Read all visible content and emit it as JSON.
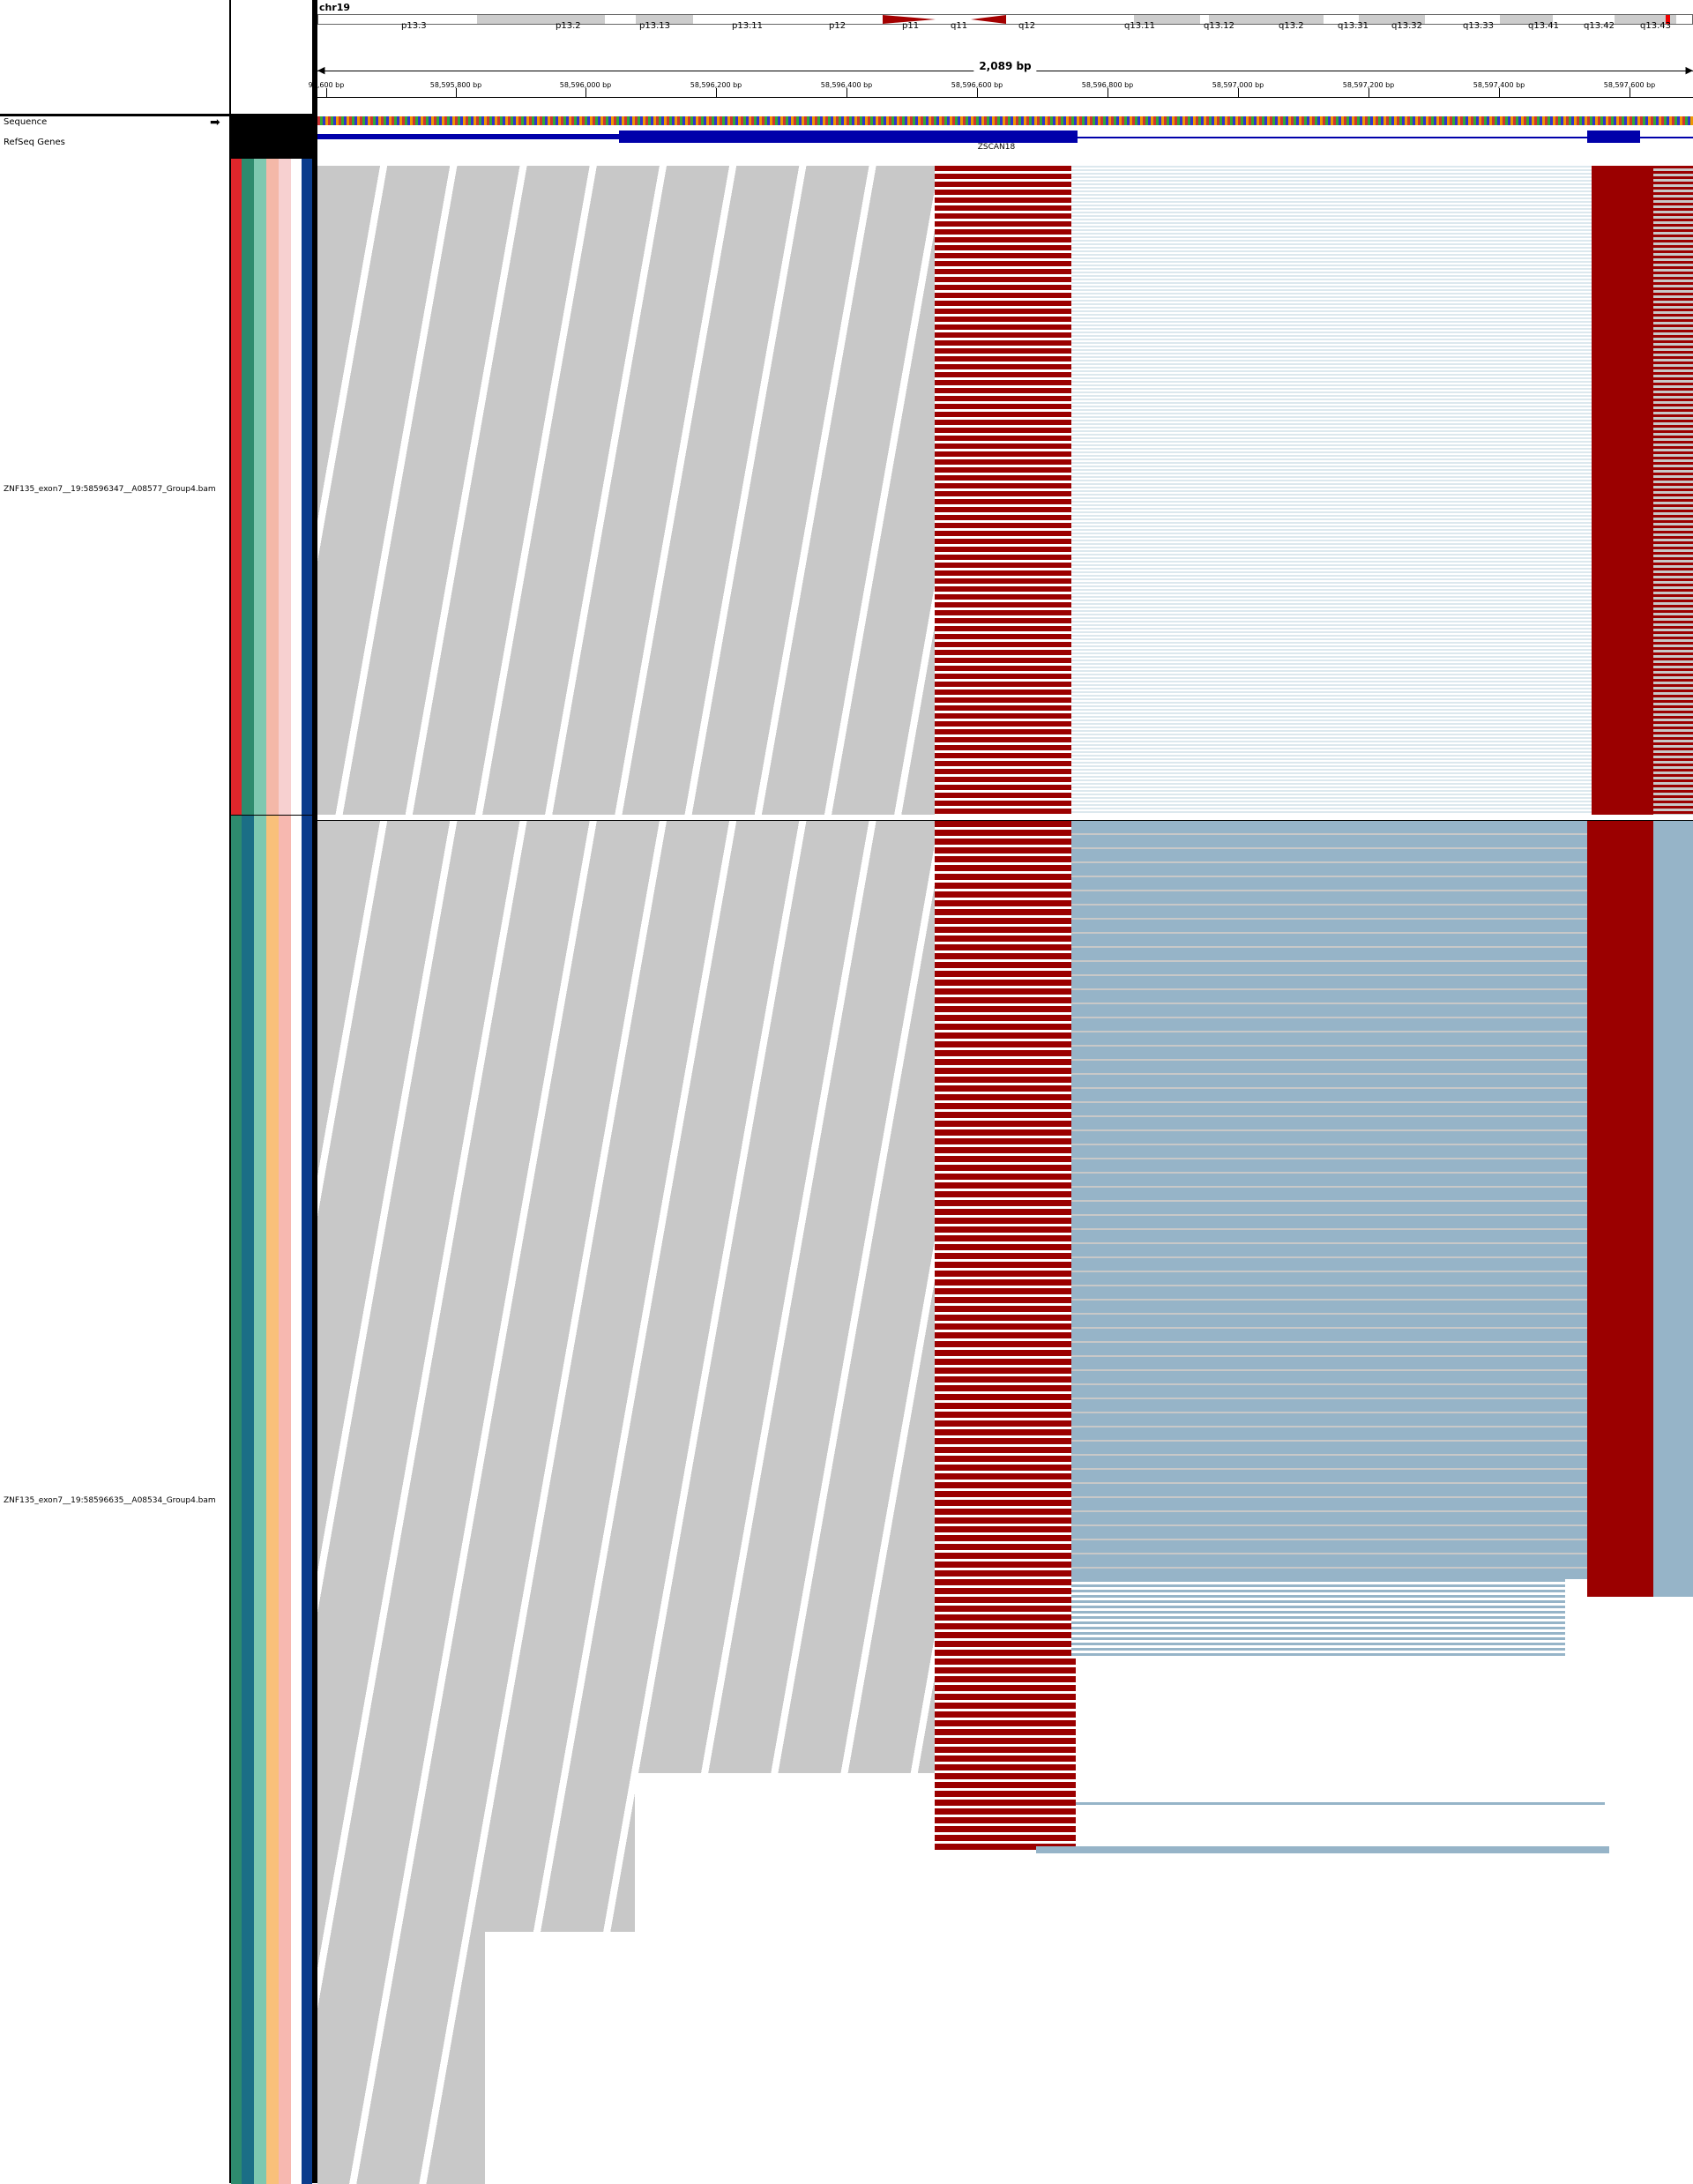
{
  "chromosome": "chr19",
  "span_label": "2,089 bp",
  "cytobands": [
    "p13.3",
    "p13.2",
    "p13.13",
    "p13.11",
    "p12",
    "p11",
    "q11",
    "q12",
    "q13.11",
    "q13.12",
    "q13.2",
    "q13.31",
    "q13.32",
    "q13.33",
    "q13.41",
    "q13.42",
    "q13.43"
  ],
  "ruler_ticks": [
    "95,600 bp",
    "58,595,800 bp",
    "58,596,000 bp",
    "58,596,200 bp",
    "58,596,400 bp",
    "58,596,600 bp",
    "58,596,800 bp",
    "58,597,000 bp",
    "58,597,200 bp",
    "58,597,400 bp",
    "58,597,600 bp"
  ],
  "tracks": {
    "sequence_label": "Sequence",
    "genes_label": "RefSeq Genes",
    "gene_name": "ZSCAN18",
    "bam1_label": "ZNF135_exon7__19:58596347__A08577_Group4.bam",
    "bam2_label": "ZNF135_exon7__19:58596635__A08534_Group4.bam"
  },
  "colors": {
    "read_gray": "#c8c8c8",
    "softclip_red": "#9b0000",
    "read_blue": "#96b4c8",
    "gene_blue": "#0000aa",
    "group_stripes": [
      "#e0262b",
      "#2e8b6e",
      "#7ec8b0",
      "#f4b8a8",
      "#f7d0d0",
      "#ffffff",
      "#0b3c8c"
    ]
  }
}
